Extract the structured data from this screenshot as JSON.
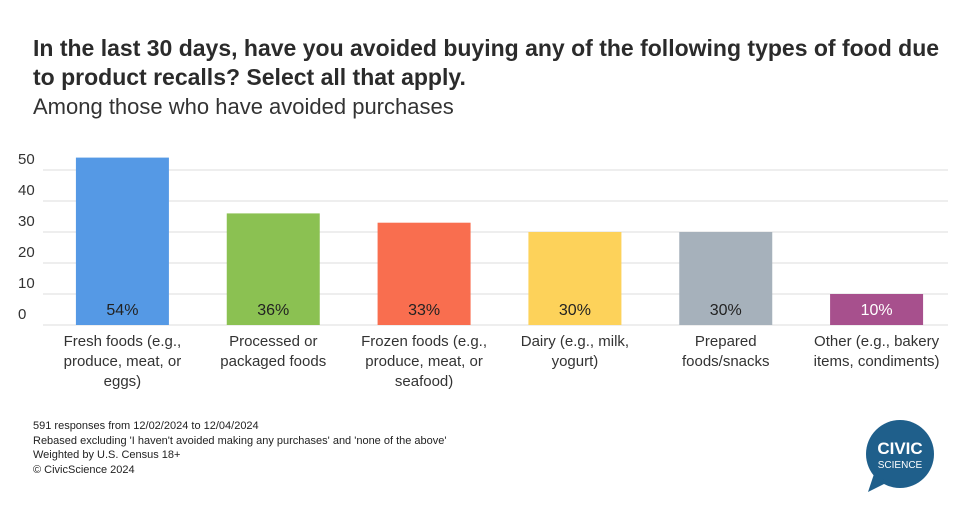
{
  "title": "In the last 30 days, have you avoided buying any of the following types of food due to product recalls? Select all that apply.",
  "subtitle": "Among those who have avoided purchases",
  "chart_data": {
    "type": "bar",
    "categories": [
      "Fresh foods (e.g., produce, meat, or eggs)",
      "Processed or packaged foods",
      "Frozen foods (e.g., produce, meat, or seafood)",
      "Dairy (e.g., milk, yogurt)",
      "Prepared foods/snacks",
      "Other (e.g., bakery items, condiments)"
    ],
    "category_lines": [
      [
        "Fresh foods (e.g.,",
        "produce, meat, or",
        "eggs)"
      ],
      [
        "Processed or",
        "packaged foods"
      ],
      [
        "Frozen foods (e.g.,",
        "produce, meat, or",
        "seafood)"
      ],
      [
        "Dairy (e.g., milk,",
        "yogurt)"
      ],
      [
        "Prepared",
        "foods/snacks"
      ],
      [
        "Other (e.g., bakery",
        "items, condiments)"
      ]
    ],
    "values": [
      54,
      36,
      33,
      30,
      30,
      10
    ],
    "data_labels": [
      "54%",
      "36%",
      "33%",
      "30%",
      "30%",
      "10%"
    ],
    "colors": [
      "#5599e5",
      "#8bc152",
      "#f96e4f",
      "#fdd25a",
      "#a6b1bb",
      "#a7508d"
    ],
    "label_colors": [
      "#222222",
      "#222222",
      "#222222",
      "#222222",
      "#222222",
      "#ffffff"
    ],
    "yticks": [
      0,
      10,
      20,
      30,
      40,
      50
    ],
    "ylim": [
      0,
      54
    ],
    "grid": true
  },
  "footnotes": [
    "591 responses from 12/02/2024 to 12/04/2024",
    "Rebased excluding 'I haven't avoided making any purchases' and 'none of the above'",
    "Weighted by U.S. Census 18+",
    "© CivicScience 2024"
  ],
  "logo": {
    "line1": "CIVIC",
    "line2": "SCIENCE",
    "color": "#1f5f8b"
  }
}
